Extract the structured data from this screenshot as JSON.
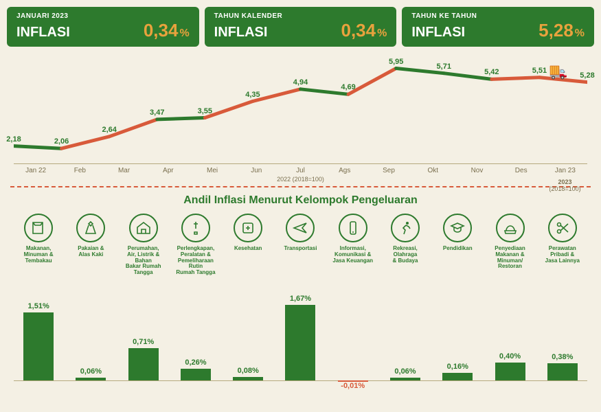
{
  "colors": {
    "green": "#2d7a2d",
    "orange": "#e8a23d",
    "red": "#d85a3a",
    "bg": "#f4f0e4",
    "axis": "#b5a97d",
    "text_muted": "#7a6f4e"
  },
  "header_boxes": [
    {
      "sub": "JANUARI 2023",
      "label": "INFLASI",
      "value": "0,34",
      "unit": "%"
    },
    {
      "sub": "TAHUN KALENDER",
      "label": "INFLASI",
      "value": "0,34",
      "unit": "%"
    },
    {
      "sub": "TAHUN KE TAHUN",
      "label": "INFLASI",
      "value": "5,28",
      "unit": "%"
    }
  ],
  "line_chart": {
    "months": [
      "Jan 22",
      "Feb",
      "Mar",
      "Apr",
      "Mei",
      "Jun",
      "Jul",
      "Ags",
      "Sep",
      "Okt",
      "Nov",
      "Des",
      "Jan 23"
    ],
    "values": [
      2.18,
      2.06,
      2.64,
      3.47,
      3.55,
      4.35,
      4.94,
      4.69,
      5.95,
      5.71,
      5.42,
      5.51,
      5.28
    ],
    "value_labels": [
      "2,18",
      "2,06",
      "2,64",
      "3,47",
      "3,55",
      "4,35",
      "4,94",
      "4,69",
      "5,95",
      "5,71",
      "5,42",
      "5,51",
      "5,28"
    ],
    "seg_colors": [
      "#2d7a2d",
      "#d85a3a",
      "#d85a3a",
      "#2d7a2d",
      "#d85a3a",
      "#d85a3a",
      "#2d7a2d",
      "#d85a3a",
      "#2d7a2d",
      "#2d7a2d",
      "#d85a3a",
      "#d85a3a"
    ],
    "y_min": 1.5,
    "y_max": 6.5,
    "line_width": 5,
    "note_center": "2022 (2018=100)",
    "note_right_1": "2023",
    "note_right_2": "(2018=100)"
  },
  "section_title": "Andil Inflasi Menurut Kelompok Pengeluaran",
  "categories": [
    {
      "icon": "food",
      "label": "Makanan,\nMinuman &\nTembakau"
    },
    {
      "icon": "dress",
      "label": "Pakaian &\nAlas Kaki"
    },
    {
      "icon": "house",
      "label": "Perumahan,\nAir, Listrik &\nBahan\nBakar Rumah\nTangga"
    },
    {
      "icon": "tools",
      "label": "Perlengkapan,\nPeralatan &\nPemeliharaan\nRutin\nRumah Tangga"
    },
    {
      "icon": "health",
      "label": "Kesehatan"
    },
    {
      "icon": "plane",
      "label": "Transportasi"
    },
    {
      "icon": "phone",
      "label": "Informasi,\nKomunikasi &\nJasa Keuangan"
    },
    {
      "icon": "run",
      "label": "Rekreasi,\nOlahraga\n& Budaya"
    },
    {
      "icon": "grad",
      "label": "Pendidikan"
    },
    {
      "icon": "meal",
      "label": "Penyediaan\nMakanan &\nMinuman/\nRestoran"
    },
    {
      "icon": "scissors",
      "label": "Perawatan\nPribadi &\nJasa Lainnya"
    }
  ],
  "bars": {
    "values": [
      1.51,
      0.06,
      0.71,
      0.26,
      0.08,
      1.67,
      -0.01,
      0.06,
      0.16,
      0.4,
      0.38
    ],
    "labels": [
      "1,51%",
      "0,06%",
      "0,71%",
      "0,26%",
      "0,08%",
      "1,67%",
      "-0,01%",
      "0,06%",
      "0,16%",
      "0,40%",
      "0,38%"
    ],
    "pos_color": "#2d7a2d",
    "neg_color": "#d85a3a",
    "max_ref": 1.67,
    "bar_area_h": 110
  }
}
